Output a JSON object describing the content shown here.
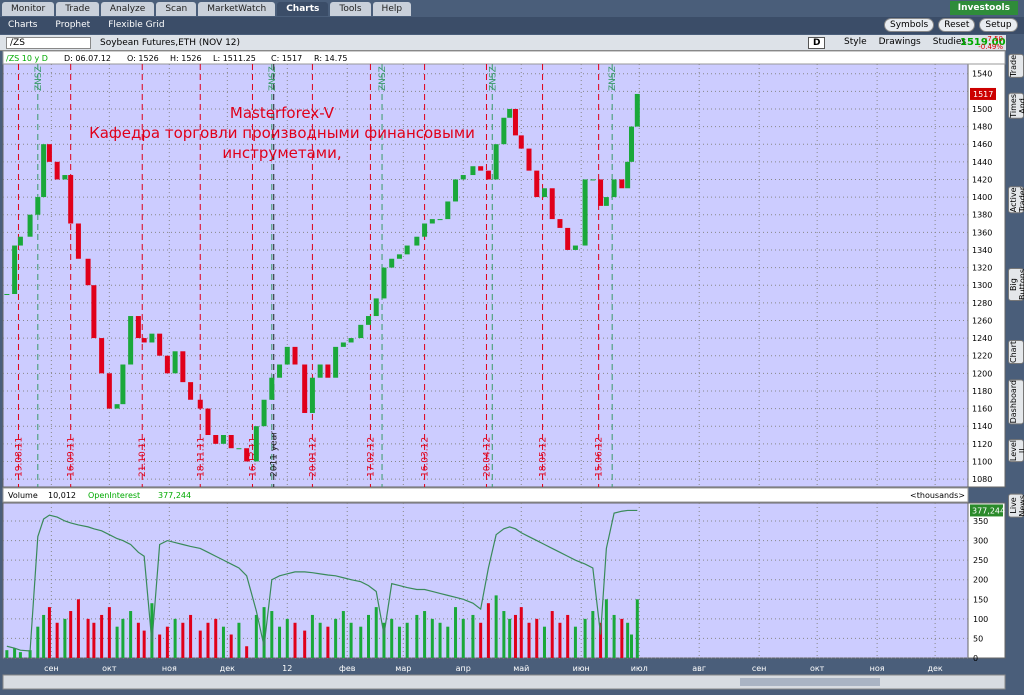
{
  "tabs": [
    "Monitor",
    "Trade",
    "Analyze",
    "Scan",
    "MarketWatch",
    "Charts",
    "Tools",
    "Help"
  ],
  "active_tab": "Charts",
  "brand": "Investools",
  "subtabs": [
    "Charts",
    "Prophet",
    "Flexible Grid"
  ],
  "toolbar_buttons": [
    "Symbols",
    "Reset",
    "Setup"
  ],
  "chart_bar": {
    "symbol": "/ZS",
    "description": "Soybean Futures,ETH (NOV 12)",
    "period": "D",
    "buttons": [
      "Style",
      "Drawings",
      "Studies"
    ],
    "last": "1519.00",
    "change": "-7.50",
    "change_pct": "-0.49%"
  },
  "info": [
    "/ZS 10 y D",
    "D: 06.07.12",
    "O: 1526",
    "H: 1526",
    "L: 1511.25",
    "C: 1517",
    "R: 14.75"
  ],
  "side_tabs": [
    "Trade",
    "Times And Sales",
    "Active Trader",
    "Big Buttons",
    "Chart",
    "Dashboard",
    "Level II",
    "Live News"
  ],
  "chart_data": [
    {
      "type": "candlestick",
      "annotation": [
        "Masterforex-V",
        "Кафедра торговли производными финансовыми",
        "инструметами,"
      ],
      "last_label": "1517",
      "last_value": 1517,
      "x": [
        8,
        12,
        15,
        20,
        24,
        27,
        30,
        34,
        38,
        41,
        45,
        50,
        53,
        57,
        61,
        65,
        68,
        72,
        76,
        79,
        83,
        87,
        91,
        95,
        99,
        103,
        108,
        112,
        116,
        120,
        124,
        128,
        132,
        137,
        141,
        145,
        149,
        153,
        157,
        162,
        166,
        170,
        174,
        178,
        182,
        186,
        191,
        195,
        199,
        203,
        207,
        211,
        215,
        220,
        224,
        228,
        232,
        236,
        240,
        244,
        249,
        253,
        257,
        261,
        265,
        268,
        271,
        274,
        278,
        282,
        286,
        290,
        294,
        298,
        302,
        307,
        311,
        315,
        318,
        322,
        326,
        329,
        331,
        334
      ],
      "close": [
        1290,
        1345,
        1355,
        1380,
        1400,
        1460,
        1440,
        1420,
        1425,
        1370,
        1330,
        1300,
        1240,
        1200,
        1160,
        1165,
        1210,
        1265,
        1240,
        1235,
        1245,
        1220,
        1200,
        1225,
        1190,
        1170,
        1160,
        1130,
        1120,
        1130,
        1115,
        1115,
        1100,
        1140,
        1170,
        1195,
        1210,
        1230,
        1210,
        1155,
        1195,
        1210,
        1195,
        1230,
        1235,
        1240,
        1255,
        1265,
        1285,
        1320,
        1330,
        1335,
        1345,
        1355,
        1370,
        1375,
        1375,
        1395,
        1420,
        1425,
        1435,
        1430,
        1420,
        1460,
        1490,
        1500,
        1470,
        1455,
        1430,
        1400,
        1410,
        1375,
        1365,
        1340,
        1345,
        1420,
        1420,
        1390,
        1400,
        1420,
        1410,
        1440,
        1480,
        1517
      ],
      "up_color": "#1aa83a",
      "down_color": "#e0001a",
      "xlim": [
        6,
        505
      ],
      "ylim": [
        1071,
        1551
      ],
      "yticks": [
        1080,
        1100,
        1120,
        1140,
        1160,
        1180,
        1200,
        1220,
        1240,
        1260,
        1280,
        1300,
        1320,
        1340,
        1360,
        1380,
        1400,
        1420,
        1440,
        1460,
        1480,
        1500,
        1520,
        1540
      ],
      "events": [
        {
          "label": "19.08.11",
          "x": 14,
          "color": "#e0001a"
        },
        {
          "label": "16.09.11",
          "x": 41,
          "color": "#e0001a"
        },
        {
          "label": "21.10.11",
          "x": 78,
          "color": "#e0001a"
        },
        {
          "label": "18.11.11",
          "x": 108,
          "color": "#e0001a"
        },
        {
          "label": "16.12.11",
          "x": 135,
          "color": "#e0001a"
        },
        {
          "label": "2011 year",
          "x": 146,
          "color": "#222222"
        },
        {
          "label": "20.01.12",
          "x": 166,
          "color": "#e0001a"
        },
        {
          "label": "17.02.12",
          "x": 196,
          "color": "#e0001a"
        },
        {
          "label": "16.03.12",
          "x": 224,
          "color": "#e0001a"
        },
        {
          "label": "20.04.12",
          "x": 256,
          "color": "#e0001a"
        },
        {
          "label": "18.05.12",
          "x": 285,
          "color": "#e0001a"
        },
        {
          "label": "15.06.12",
          "x": 314,
          "color": "#e0001a"
        },
        {
          "label": "ZNSZ",
          "x": 24,
          "color": "#3a9a6a"
        },
        {
          "label": "ZNSZ",
          "x": 145,
          "color": "#3a9a6a"
        },
        {
          "label": "ZNSZ",
          "x": 202,
          "color": "#3a9a6a"
        },
        {
          "label": "ZNSZ",
          "x": 259,
          "color": "#3a9a6a"
        },
        {
          "label": "ZNSZ",
          "x": 321,
          "color": "#3a9a6a"
        }
      ]
    },
    {
      "type": "volume",
      "legend": [
        "Volume",
        "10,012",
        "OpenInterest",
        "377,244"
      ],
      "units": "<thousands>",
      "oi_label": "377,244",
      "oi_value": 377,
      "volume": [
        20,
        25,
        15,
        20,
        80,
        110,
        130,
        90,
        100,
        120,
        150,
        100,
        90,
        110,
        130,
        80,
        100,
        120,
        90,
        70,
        140,
        60,
        80,
        100,
        90,
        110,
        70,
        90,
        100,
        80,
        60,
        90,
        30,
        110,
        130,
        120,
        80,
        100,
        90,
        70,
        110,
        90,
        80,
        100,
        120,
        90,
        80,
        110,
        130,
        90,
        100,
        80,
        90,
        110,
        120,
        100,
        90,
        80,
        130,
        100,
        110,
        90,
        140,
        160,
        120,
        100,
        110,
        130,
        90,
        100,
        80,
        120,
        90,
        110,
        80,
        100,
        120,
        90,
        150,
        110,
        100,
        90,
        60,
        150
      ],
      "open_interest": [
        30,
        25,
        20,
        18,
        310,
        355,
        365,
        360,
        350,
        345,
        340,
        335,
        330,
        325,
        315,
        305,
        300,
        290,
        270,
        260,
        40,
        290,
        300,
        295,
        290,
        285,
        280,
        270,
        260,
        250,
        240,
        230,
        210,
        120,
        30,
        200,
        210,
        215,
        220,
        220,
        218,
        215,
        212,
        210,
        205,
        200,
        195,
        185,
        170,
        60,
        190,
        185,
        180,
        175,
        175,
        170,
        165,
        160,
        155,
        150,
        140,
        125,
        230,
        315,
        330,
        335,
        330,
        320,
        310,
        300,
        290,
        280,
        270,
        260,
        250,
        240,
        230,
        60,
        280,
        370,
        375,
        377,
        377,
        377
      ],
      "oi_color": "#3a8a5a",
      "ylim": [
        0,
        396
      ],
      "yticks": [
        0,
        50,
        100,
        150,
        200,
        250,
        300,
        350
      ],
      "xticks": [
        {
          "value": 31,
          "label": "сен"
        },
        {
          "value": 61,
          "label": "окт"
        },
        {
          "value": 92,
          "label": "ноя"
        },
        {
          "value": 122,
          "label": "дек"
        },
        {
          "value": 153,
          "label": "12"
        },
        {
          "value": 184,
          "label": "фев"
        },
        {
          "value": 213,
          "label": "мар"
        },
        {
          "value": 244,
          "label": "апр"
        },
        {
          "value": 274,
          "label": "май"
        },
        {
          "value": 305,
          "label": "июн"
        },
        {
          "value": 335,
          "label": "июл"
        },
        {
          "value": 366,
          "label": "авг"
        },
        {
          "value": 397,
          "label": "сен"
        },
        {
          "value": 427,
          "label": "окт"
        },
        {
          "value": 458,
          "label": "ноя"
        },
        {
          "value": 488,
          "label": "дек"
        }
      ]
    }
  ]
}
